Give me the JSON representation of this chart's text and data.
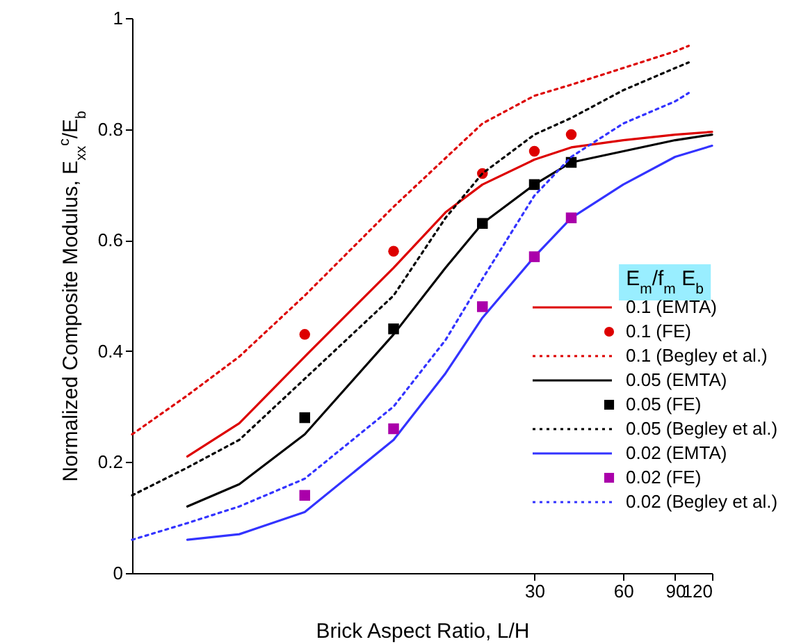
{
  "chart_data": {
    "type": "line",
    "xlabel": "Brick Aspect Ratio, L/H",
    "ylabel": "Normalized Composite Modulus,  E$_{xx}$$^{c}$/E$_{b}$",
    "legend_title": "E$_{m}$/f$_{m}$ E$_{b}$",
    "log": "x",
    "xlim": [
      1.3,
      120
    ],
    "xticks": [
      30,
      60,
      90,
      120
    ],
    "ylim": [
      0,
      1
    ],
    "yticks": [
      0,
      0.2,
      0.4,
      0.6,
      0.8,
      1
    ],
    "grid": false,
    "legend": "bottom right",
    "series": [
      {
        "name": "0.1 (EMTA)",
        "type": "line",
        "line_style": "solid",
        "color": "#dd0000",
        "x": [
          2,
          3,
          5,
          10,
          15,
          20,
          30,
          40,
          60,
          90,
          120
        ],
        "values": [
          0.21,
          0.27,
          0.39,
          0.55,
          0.65,
          0.7,
          0.745,
          0.767,
          0.78,
          0.79,
          0.795
        ]
      },
      {
        "name": "0.1 (FE)",
        "type": "scatter",
        "marker": "circle",
        "color": "#dd0000",
        "x": [
          5,
          10,
          20,
          30,
          40
        ],
        "values": [
          0.43,
          0.58,
          0.72,
          0.76,
          0.79
        ]
      },
      {
        "name": "0.1 (Begley et al.)",
        "type": "line",
        "line_style": "dotted",
        "color": "#dd0000",
        "x": [
          1.3,
          2,
          3,
          5,
          10,
          20,
          30,
          40,
          60,
          90,
          100
        ],
        "values": [
          0.25,
          0.32,
          0.39,
          0.5,
          0.66,
          0.81,
          0.86,
          0.88,
          0.91,
          0.94,
          0.95
        ]
      },
      {
        "name": "0.05 (EMTA)",
        "type": "line",
        "line_style": "solid",
        "color": "#000000",
        "x": [
          2,
          3,
          5,
          10,
          15,
          20,
          30,
          40,
          60,
          90,
          120
        ],
        "values": [
          0.12,
          0.16,
          0.25,
          0.43,
          0.55,
          0.63,
          0.7,
          0.74,
          0.76,
          0.78,
          0.79
        ]
      },
      {
        "name": "0.05 (FE)",
        "type": "scatter",
        "marker": "square",
        "color": "#000000",
        "x": [
          5,
          10,
          20,
          30,
          40
        ],
        "values": [
          0.28,
          0.44,
          0.63,
          0.7,
          0.74
        ]
      },
      {
        "name": "0.05 (Begley et al.)",
        "type": "line",
        "line_style": "dotted",
        "color": "#000000",
        "x": [
          1.3,
          2,
          3,
          5,
          10,
          15,
          20,
          30,
          40,
          60,
          90,
          100
        ],
        "values": [
          0.14,
          0.19,
          0.24,
          0.35,
          0.5,
          0.64,
          0.72,
          0.79,
          0.82,
          0.87,
          0.91,
          0.92
        ]
      },
      {
        "name": "0.02 (EMTA)",
        "type": "line",
        "line_style": "solid",
        "color": "#3333ff",
        "x": [
          2,
          3,
          5,
          10,
          15,
          20,
          30,
          40,
          60,
          90,
          120
        ],
        "values": [
          0.06,
          0.07,
          0.11,
          0.24,
          0.36,
          0.46,
          0.57,
          0.64,
          0.7,
          0.75,
          0.77
        ]
      },
      {
        "name": "0.02 (FE)",
        "type": "scatter",
        "marker": "square",
        "color": "#aa00aa",
        "x": [
          5,
          10,
          20,
          30,
          40
        ],
        "values": [
          0.14,
          0.26,
          0.48,
          0.57,
          0.64
        ]
      },
      {
        "name": "0.02 (Begley et al.)",
        "type": "line",
        "line_style": "dotted",
        "color": "#3333ff",
        "x": [
          1.3,
          2,
          3,
          5,
          10,
          15,
          20,
          30,
          40,
          60,
          90,
          100
        ],
        "values": [
          0.06,
          0.09,
          0.12,
          0.17,
          0.3,
          0.42,
          0.53,
          0.68,
          0.75,
          0.81,
          0.85,
          0.865
        ]
      }
    ]
  }
}
